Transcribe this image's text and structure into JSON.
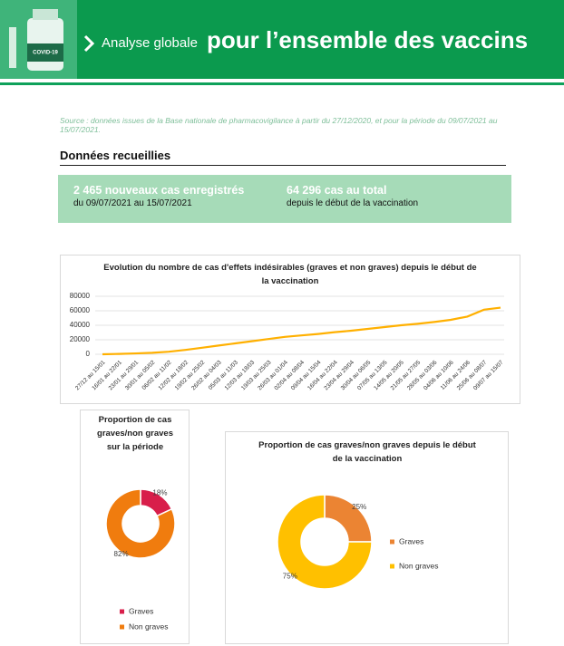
{
  "header": {
    "logo_text": "COVID-19",
    "subtitle": "Analyse globale",
    "title": "pour l’ensemble des vaccins"
  },
  "source": "Source : données issues de la Base nationale de pharmacovigilance à partir du 27/12/2020, et pour la période du 09/07/2021 au 15/07/2021.",
  "section_title": "Données recueillies",
  "stats": [
    {
      "value": "2 465 nouveaux cas enregistrés",
      "detail": "du 09/07/2021 au 15/07/2021"
    },
    {
      "value": "64 296 cas au total",
      "detail": "depuis le début de la vaccination"
    }
  ],
  "chart_data": [
    {
      "type": "line",
      "title": "Evolution du nombre de cas d'effets indésirables (graves et non graves) depuis le début de la vaccination",
      "categories": [
        "27/12 au 15/01",
        "16/01 au 22/01",
        "23/01 au 29/01",
        "30/01 au 05/02",
        "06/02 au 11/02",
        "12/02 au 18/02",
        "19/02 au 25/02",
        "26/02 au 04/03",
        "05/03 au 11/03",
        "12/03 au 18/03",
        "19/03 au 25/03",
        "26/03 au 01/04",
        "02/04 au 08/04",
        "09/04 au 15/04",
        "16/04 au 22/04",
        "23/04 au 29/04",
        "30/04 au 06/05",
        "07/05 au 13/05",
        "14/05 au 20/05",
        "21/05 au 27/05",
        "28/05 au 03/06",
        "04/06 au 10/06",
        "11/06 au 24/06",
        "25/06 au 08/07",
        "09/07 au 15/07"
      ],
      "values": [
        0,
        500,
        1200,
        2000,
        3500,
        6000,
        9000,
        12000,
        15000,
        18000,
        21000,
        24000,
        26000,
        28000,
        30500,
        32500,
        35000,
        37500,
        40000,
        42000,
        44500,
        47500,
        52000,
        61500,
        64296
      ],
      "color": "#ffb000",
      "ylim": [
        0,
        80000
      ],
      "yticks": [
        0,
        20000,
        40000,
        60000,
        80000
      ],
      "grid": true
    },
    {
      "type": "donut",
      "title": "Proportion de cas graves/non graves sur la période",
      "categories": [
        "Graves",
        "Non graves"
      ],
      "values": [
        18,
        82
      ],
      "value_labels": [
        "18%",
        "82%"
      ],
      "colors": [
        "#d81e4a",
        "#f07c0e"
      ],
      "legend": "bottom"
    },
    {
      "type": "donut",
      "title": "Proportion de cas graves/non graves depuis le début de la vaccination",
      "categories": [
        "Graves",
        "Non graves"
      ],
      "values": [
        25,
        75
      ],
      "value_labels": [
        "25%",
        "75%"
      ],
      "colors": [
        "#eb8433",
        "#ffc000"
      ],
      "legend": "right"
    }
  ]
}
